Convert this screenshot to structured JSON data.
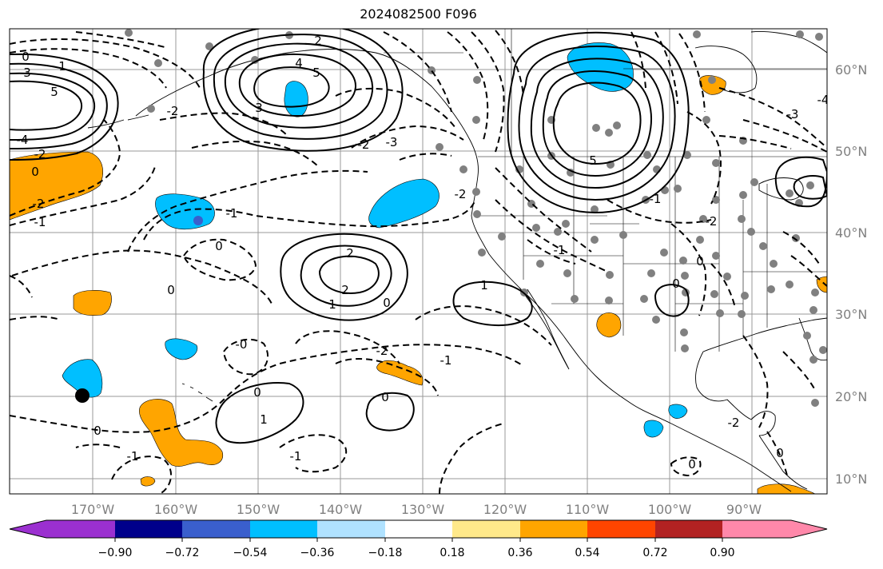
{
  "title": "2024082500 F096",
  "longitude_labels": [
    "170°W",
    "160°W",
    "150°W",
    "140°W",
    "130°W",
    "120°W",
    "110°W",
    "100°W",
    "90°W"
  ],
  "latitude_labels": [
    "60°N",
    "50°N",
    "40°N",
    "30°N",
    "20°N",
    "10°N"
  ],
  "colorbar": {
    "labels": [
      "−0.90",
      "−0.72",
      "−0.54",
      "−0.36",
      "−0.18",
      "0.18",
      "0.36",
      "0.54",
      "0.72",
      "0.90"
    ],
    "colors": [
      "#9b30d0",
      "#00008b",
      "#3a5fcd",
      "#00bfff",
      "#b0e2ff",
      "#ffffff",
      "#ffe98a",
      "#ffa500",
      "#ff4500",
      "#b22222",
      "#ff88aa"
    ]
  },
  "colors": {
    "positive_contour": "#000000",
    "negative_contour": "#000000",
    "station_dot": "#808080",
    "gridline": "#999999",
    "axis_label": "#808080"
  },
  "contour_labels": [
    {
      "text": "0"
    },
    {
      "text": "1"
    },
    {
      "text": "3"
    },
    {
      "text": "5"
    },
    {
      "text": "-4"
    },
    {
      "text": "-2"
    },
    {
      "text": "0"
    },
    {
      "text": "-2"
    },
    {
      "text": "-1"
    },
    {
      "text": "2"
    },
    {
      "text": "4"
    },
    {
      "text": "5"
    },
    {
      "text": "3"
    },
    {
      "text": "-2"
    },
    {
      "text": "-2"
    },
    {
      "text": "-3"
    },
    {
      "text": "-1"
    },
    {
      "text": "0"
    },
    {
      "text": "2"
    },
    {
      "text": "2"
    },
    {
      "text": "1"
    },
    {
      "text": "0"
    },
    {
      "text": "0"
    },
    {
      "text": "1"
    },
    {
      "text": "-2"
    },
    {
      "text": "-1"
    },
    {
      "text": "-0"
    },
    {
      "text": "0"
    },
    {
      "text": "1"
    },
    {
      "text": "0"
    },
    {
      "text": "0"
    },
    {
      "text": "-1"
    },
    {
      "text": "-1"
    },
    {
      "text": "5"
    },
    {
      "text": "-2"
    },
    {
      "text": "-1"
    },
    {
      "text": "0"
    },
    {
      "text": "-2"
    },
    {
      "text": "-2"
    },
    {
      "text": "0"
    },
    {
      "text": "-3"
    },
    {
      "text": "-4"
    },
    {
      "text": "0"
    },
    {
      "text": "0"
    },
    {
      "text": "-1"
    }
  ]
}
